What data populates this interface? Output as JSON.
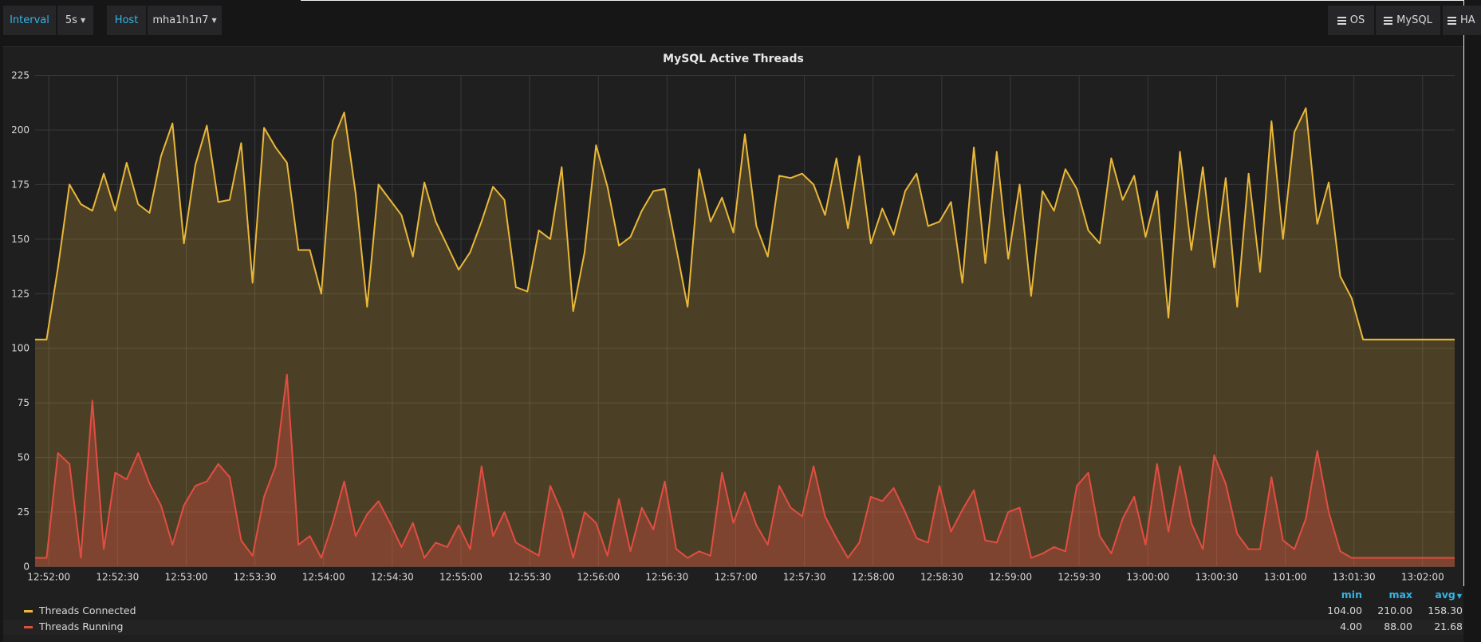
{
  "toolbar": {
    "interval_label": "Interval",
    "interval_value": "5s",
    "host_label": "Host",
    "host_value": "mha1h1n7",
    "nav_buttons": [
      "OS",
      "MySQL",
      "HA"
    ]
  },
  "colors": {
    "accent": "#33b5e5",
    "threads_connected": "#eab839",
    "threads_running": "#e24d42"
  },
  "chart_data": {
    "type": "area",
    "title": "MySQL Active Threads",
    "x_start": "12:51:54",
    "interval_s": 5,
    "xlim": [
      "12:51:54",
      "13:02:14"
    ],
    "x_ticks": [
      "12:52:00",
      "12:52:30",
      "12:53:00",
      "12:53:30",
      "12:54:00",
      "12:54:30",
      "12:55:00",
      "12:55:30",
      "12:56:00",
      "12:56:30",
      "12:57:00",
      "12:57:30",
      "12:58:00",
      "12:58:30",
      "12:59:00",
      "12:59:30",
      "13:00:00",
      "13:00:30",
      "13:01:00",
      "13:01:30",
      "13:02:00"
    ],
    "ylim": [
      0,
      225
    ],
    "y_ticks": [
      "0",
      "25",
      "50",
      "75",
      "100",
      "125",
      "150",
      "175",
      "200",
      "225"
    ],
    "grid": true,
    "legend_placement": "bottom",
    "series": [
      {
        "name": "Threads Connected",
        "color": "#eab839",
        "values": [
          104,
          104,
          137,
          175,
          166,
          163,
          180,
          163,
          185,
          166,
          162,
          188,
          203,
          148,
          184,
          202,
          167,
          168,
          194,
          130,
          201,
          192,
          185,
          145,
          145,
          125,
          195,
          208,
          171,
          119,
          175,
          168,
          161,
          142,
          176,
          158,
          147,
          136,
          144,
          158,
          174,
          168,
          128,
          126,
          154,
          150,
          183,
          117,
          144,
          193,
          174,
          147,
          151,
          163,
          172,
          173,
          146,
          119,
          182,
          158,
          169,
          153,
          198,
          156,
          142,
          179,
          178,
          180,
          175,
          161,
          187,
          155,
          188,
          148,
          164,
          152,
          172,
          180,
          156,
          158,
          167,
          130,
          192,
          139,
          190,
          141,
          175,
          124,
          172,
          163,
          182,
          173,
          154,
          148,
          187,
          168,
          179,
          151,
          172,
          114,
          190,
          145,
          183,
          137,
          178,
          119,
          180,
          135,
          204,
          150,
          199,
          210,
          157,
          176,
          133,
          123,
          104,
          104,
          104,
          104,
          104,
          104,
          104,
          104,
          104
        ],
        "min": "104.00",
        "max": "210.00",
        "avg": "158.30"
      },
      {
        "name": "Threads Running",
        "color": "#e24d42",
        "values": [
          4,
          4,
          52,
          47,
          4,
          76,
          8,
          43,
          40,
          52,
          38,
          28,
          10,
          28,
          37,
          39,
          47,
          41,
          12,
          5,
          32,
          46,
          88,
          10,
          14,
          4,
          20,
          39,
          14,
          24,
          30,
          20,
          9,
          20,
          4,
          11,
          9,
          19,
          8,
          46,
          14,
          25,
          11,
          8,
          5,
          37,
          25,
          4,
          25,
          20,
          5,
          31,
          7,
          27,
          17,
          39,
          8,
          4,
          7,
          5,
          43,
          20,
          34,
          19,
          10,
          37,
          27,
          23,
          46,
          23,
          13,
          4,
          11,
          32,
          30,
          36,
          25,
          13,
          11,
          37,
          16,
          26,
          35,
          12,
          11,
          25,
          27,
          4,
          6,
          9,
          7,
          37,
          43,
          14,
          6,
          22,
          32,
          10,
          47,
          16,
          46,
          20,
          8,
          51,
          38,
          15,
          8,
          8,
          41,
          12,
          8,
          22,
          53,
          25,
          7,
          4,
          4,
          4,
          4,
          4,
          4,
          4,
          4,
          4,
          4
        ],
        "min": "4.00",
        "max": "88.00",
        "avg": "21.68"
      }
    ],
    "legend_headers": {
      "min": "min",
      "max": "max",
      "avg": "avg"
    }
  }
}
